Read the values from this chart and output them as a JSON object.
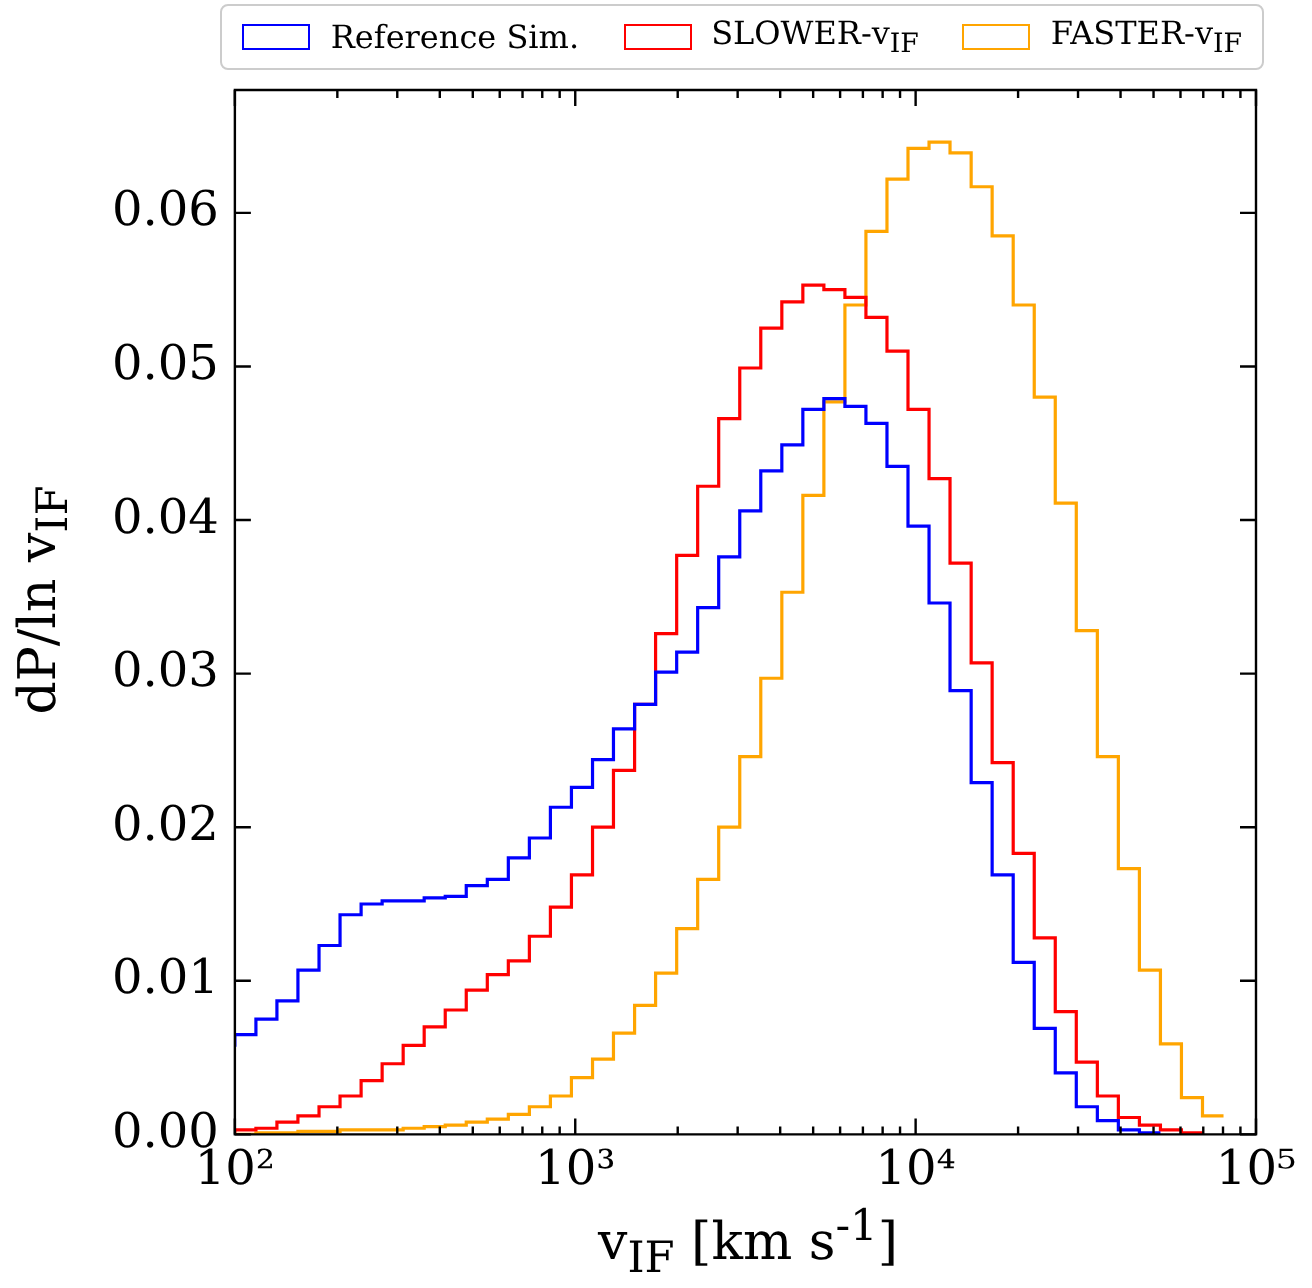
{
  "chart_data": {
    "type": "step",
    "xlabel": "v$_{IF}$ [km s$^{-1}$]",
    "ylabel": "dP/ln v$_{IF}$",
    "log": "x",
    "legend": "top",
    "x": [
      100,
      115.3,
      132.9,
      153.2,
      176.7,
      203.7,
      234.9,
      270.8,
      312.2,
      359.9,
      415,
      478.4,
      551.6,
      635.9,
      733.2,
      845.3,
      974.5,
      1124,
      1295,
      1494,
      1722,
      1986,
      2289,
      2639,
      3043,
      3508,
      4045,
      4663,
      5376,
      6198,
      7145,
      8238,
      9497,
      10950,
      12620,
      14560,
      16780,
      19350,
      22310,
      25720,
      29650,
      34190,
      39410,
      45440,
      52390,
      60390,
      69630,
      80280
    ],
    "series": [
      {
        "name": "Reference Sim.",
        "color": "#0000ff",
        "values": [
          0.0057,
          0.0065,
          0.0075,
          0.0087,
          0.0107,
          0.0123,
          0.0143,
          0.015,
          0.0152,
          0.0152,
          0.0154,
          0.0155,
          0.0162,
          0.0166,
          0.018,
          0.0193,
          0.0213,
          0.0226,
          0.0244,
          0.0264,
          0.028,
          0.0301,
          0.0314,
          0.0343,
          0.0376,
          0.0406,
          0.0432,
          0.0449,
          0.0472,
          0.0479,
          0.0474,
          0.0463,
          0.0435,
          0.0396,
          0.0346,
          0.0289,
          0.0229,
          0.0169,
          0.0112,
          0.0069,
          0.004,
          0.0018,
          0.0009,
          0.0003,
          0.0001,
          null,
          null,
          null
        ]
      },
      {
        "name": "SLOWER-v$_{IF}$",
        "color": "#ff0000",
        "values": [
          0.0001,
          0.0003,
          0.0004,
          0.0008,
          0.0012,
          0.0018,
          0.0025,
          0.0035,
          0.0046,
          0.0058,
          0.007,
          0.0081,
          0.0094,
          0.0104,
          0.0113,
          0.0129,
          0.0148,
          0.0169,
          0.02,
          0.0237,
          0.028,
          0.0326,
          0.0377,
          0.0422,
          0.0466,
          0.0499,
          0.0525,
          0.0542,
          0.0553,
          0.055,
          0.0545,
          0.0532,
          0.051,
          0.0472,
          0.0427,
          0.0372,
          0.0307,
          0.0242,
          0.0183,
          0.0128,
          0.008,
          0.0047,
          0.0025,
          0.0011,
          0.0006,
          0.0003,
          0.0001,
          null
        ]
      },
      {
        "name": "FASTER-v$_{IF}$",
        "color": "#ffa500",
        "values": [
          0,
          0,
          0.0001,
          0.0001,
          0.0002,
          0.0002,
          0.0003,
          0.0003,
          0.0003,
          0.0004,
          0.0005,
          0.0006,
          0.0008,
          0.001,
          0.0013,
          0.0018,
          0.0025,
          0.0037,
          0.0049,
          0.0066,
          0.0084,
          0.0105,
          0.0134,
          0.0166,
          0.02,
          0.0246,
          0.0297,
          0.0353,
          0.0416,
          0.0477,
          0.054,
          0.0588,
          0.0622,
          0.0642,
          0.0646,
          0.0639,
          0.0617,
          0.0585,
          0.054,
          0.048,
          0.0411,
          0.0328,
          0.0246,
          0.0173,
          0.0107,
          0.0059,
          0.0024,
          0.0012
        ]
      }
    ],
    "xlim": [
      100,
      100000
    ],
    "xticks": [
      {
        "value": 100,
        "label": "10²"
      },
      {
        "value": 200,
        "label": null
      },
      {
        "value": 300,
        "label": null
      },
      {
        "value": 400,
        "label": null
      },
      {
        "value": 500,
        "label": null
      },
      {
        "value": 600,
        "label": null
      },
      {
        "value": 700,
        "label": null
      },
      {
        "value": 800,
        "label": null
      },
      {
        "value": 900,
        "label": null
      },
      {
        "value": 1000,
        "label": "10³"
      },
      {
        "value": 2000,
        "label": null
      },
      {
        "value": 3000,
        "label": null
      },
      {
        "value": 4000,
        "label": null
      },
      {
        "value": 5000,
        "label": null
      },
      {
        "value": 6000,
        "label": null
      },
      {
        "value": 7000,
        "label": null
      },
      {
        "value": 8000,
        "label": null
      },
      {
        "value": 9000,
        "label": null
      },
      {
        "value": 10000,
        "label": "10⁴"
      },
      {
        "value": 20000,
        "label": null
      },
      {
        "value": 30000,
        "label": null
      },
      {
        "value": 40000,
        "label": null
      },
      {
        "value": 50000,
        "label": null
      },
      {
        "value": 60000,
        "label": null
      },
      {
        "value": 70000,
        "label": null
      },
      {
        "value": 80000,
        "label": null
      },
      {
        "value": 90000,
        "label": null
      },
      {
        "value": 100000,
        "label": "10⁵"
      }
    ],
    "ylim": [
      0,
      0.068
    ],
    "yticks": [
      {
        "value": 0,
        "label": "0.00"
      },
      {
        "value": 0.01,
        "label": "0.01"
      },
      {
        "value": 0.02,
        "label": "0.02"
      },
      {
        "value": 0.03,
        "label": "0.03"
      },
      {
        "value": 0.04,
        "label": "0.04"
      },
      {
        "value": 0.05,
        "label": "0.05"
      },
      {
        "value": 0.06,
        "label": "0.06"
      }
    ]
  }
}
